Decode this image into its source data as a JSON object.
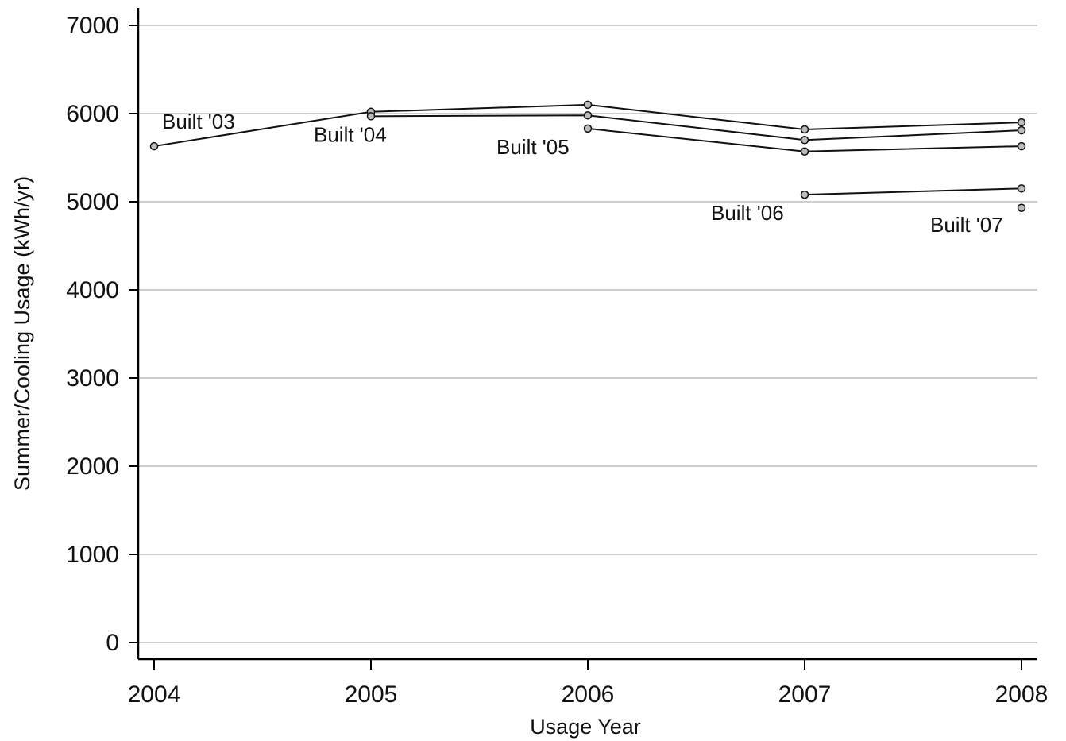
{
  "chart_data": {
    "type": "line",
    "title": "",
    "xlabel": "Usage Year",
    "ylabel": "Summer/Cooling Usage (kWh/yr)",
    "xlim": [
      2004,
      2008
    ],
    "ylim": [
      0,
      7000
    ],
    "x_ticks": [
      "2004",
      "2005",
      "2006",
      "2007",
      "2008"
    ],
    "y_ticks": [
      "0",
      "1000",
      "2000",
      "3000",
      "4000",
      "5000",
      "6000",
      "7000"
    ],
    "grid": "horizontal",
    "colors": {
      "line": "#111111",
      "marker_fill": "#bbbbbb",
      "grid": "#bdbdbd",
      "axis": "#000000"
    },
    "series": [
      {
        "name": "Built '03",
        "x": [
          2004,
          2005,
          2006,
          2007,
          2008
        ],
        "y": [
          5630,
          6020,
          6100,
          5820,
          5900
        ]
      },
      {
        "name": "Built '04",
        "x": [
          2005,
          2006,
          2007,
          2008
        ],
        "y": [
          5970,
          5980,
          5700,
          5810
        ]
      },
      {
        "name": "Built '05",
        "x": [
          2006,
          2007,
          2008
        ],
        "y": [
          5830,
          5570,
          5630
        ]
      },
      {
        "name": "Built '06",
        "x": [
          2007,
          2008
        ],
        "y": [
          5080,
          5150
        ]
      },
      {
        "name": "Built '07",
        "x": [
          2008
        ],
        "y": [
          4930
        ]
      }
    ]
  }
}
